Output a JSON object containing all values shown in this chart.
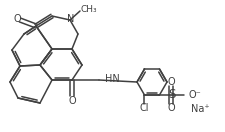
{
  "bg_color": "#ffffff",
  "line_color": "#404040",
  "line_width": 1.1,
  "font_size": 7.0,
  "figsize": [
    2.26,
    1.32
  ],
  "dpi": 100,
  "xlim": [
    0,
    226
  ],
  "ylim": [
    0,
    132
  ]
}
